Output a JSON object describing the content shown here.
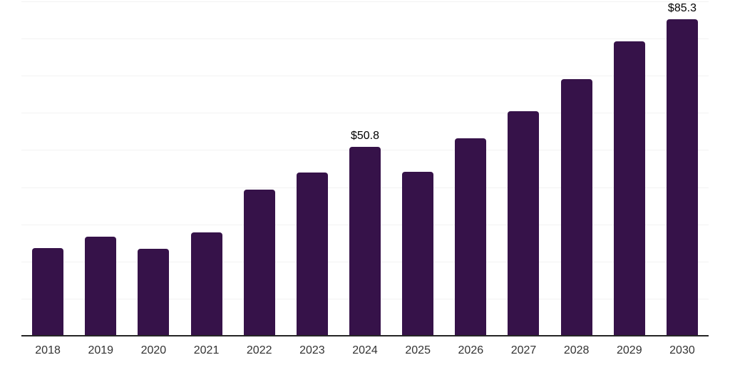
{
  "chart_data": {
    "type": "bar",
    "title": "",
    "xlabel": "",
    "ylabel": "",
    "categories": [
      "2018",
      "2019",
      "2020",
      "2021",
      "2022",
      "2023",
      "2024",
      "2025",
      "2026",
      "2027",
      "2028",
      "2029",
      "2030"
    ],
    "values": [
      23.7,
      26.6,
      23.4,
      27.9,
      39.3,
      44.0,
      50.8,
      44.2,
      53.1,
      60.5,
      69.1,
      79.3,
      85.3
    ],
    "data_labels": [
      "",
      "",
      "",
      "",
      "",
      "",
      "$50.8",
      "",
      "",
      "",
      "",
      "",
      "$85.3"
    ],
    "ylim": [
      0,
      90
    ],
    "gridline_step": 10,
    "grid": true,
    "legend": "none",
    "colors": {
      "bar": "#361249",
      "gridline": "#f2f2f2",
      "axis_line": "#262626",
      "tick_label": "#333333",
      "value_label": "#000000",
      "background": "#ffffff"
    }
  }
}
